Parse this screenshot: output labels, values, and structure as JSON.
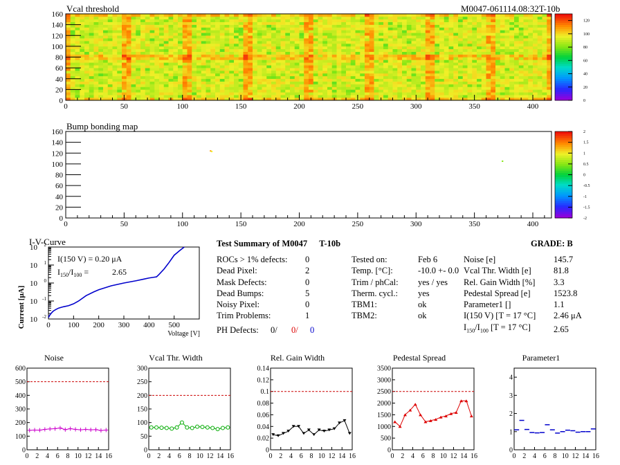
{
  "header": {
    "vcal_title": "Vcal threshold",
    "module_id": "M0047-061114.08:32T-10b",
    "bump_title": "Bump bonding map"
  },
  "chart_data": [
    {
      "type": "heatmap",
      "title": "Vcal threshold",
      "x_ticks": [
        0,
        50,
        100,
        150,
        200,
        250,
        300,
        350,
        400
      ],
      "y_ticks": [
        0,
        20,
        40,
        60,
        80,
        100,
        120,
        140,
        160
      ],
      "xlim": [
        0,
        416
      ],
      "ylim": [
        0,
        160
      ],
      "roc_grid": {
        "cols": 8,
        "rows": 2,
        "roc_width": 52,
        "roc_height": 80
      },
      "colorbar_ticks": [
        0,
        20,
        40,
        60,
        80,
        100,
        120
      ],
      "colorbar_range": [
        0,
        130
      ],
      "typical_value": 100
    },
    {
      "type": "heatmap",
      "title": "Bump bonding map",
      "x_ticks": [
        0,
        50,
        100,
        150,
        200,
        250,
        300,
        350,
        400
      ],
      "y_ticks": [
        0,
        20,
        40,
        60,
        80,
        100,
        120,
        140,
        160
      ],
      "xlim": [
        0,
        416
      ],
      "ylim": [
        0,
        160
      ],
      "colorbar_ticks": [
        -2,
        -1.5,
        -1,
        -0.5,
        0,
        0.5,
        1,
        1.5,
        2
      ],
      "colorbar_range": [
        -2,
        2
      ],
      "defects": [
        {
          "x": 124,
          "y": 124,
          "value": 1.4
        },
        {
          "x": 125,
          "y": 123,
          "value": 1.0
        },
        {
          "x": 374,
          "y": 105,
          "value": 0.5
        }
      ]
    },
    {
      "type": "line",
      "title": "I-V-Curve",
      "xlabel": "Voltage [V]",
      "ylabel": "Current [μA]",
      "log_y": true,
      "xlim": [
        0,
        600
      ],
      "ylim": [
        0.01,
        100
      ],
      "x_ticks": [
        0,
        100,
        200,
        300,
        400,
        500
      ],
      "annotation_current": "I(150 V) = 0.20 μA",
      "annotation_ratio_value": "2.65",
      "x": [
        0,
        5,
        10,
        15,
        20,
        30,
        40,
        50,
        60,
        80,
        100,
        120,
        150,
        180,
        200,
        250,
        300,
        350,
        380,
        400,
        420,
        430,
        440,
        460,
        480,
        500,
        520,
        540
      ],
      "y": [
        0.012,
        0.016,
        0.02,
        0.024,
        0.028,
        0.034,
        0.04,
        0.044,
        0.048,
        0.055,
        0.07,
        0.1,
        0.2,
        0.32,
        0.42,
        0.7,
        1.0,
        1.35,
        1.65,
        1.9,
        2.1,
        2.2,
        3.0,
        6.0,
        14.0,
        35.0,
        60.0,
        100.0
      ]
    },
    {
      "type": "line",
      "title": "Noise",
      "xlim": [
        0,
        16
      ],
      "ylim": [
        0,
        600
      ],
      "y_ticks": [
        0,
        100,
        200,
        300,
        400,
        500,
        600
      ],
      "x_ticks": [
        0,
        2,
        4,
        6,
        8,
        10,
        12,
        14,
        16
      ],
      "limit": 500,
      "color": "#cc00cc",
      "marker": "plus",
      "x": [
        0,
        1,
        2,
        3,
        4,
        5,
        6,
        7,
        8,
        9,
        10,
        11,
        12,
        13,
        14,
        15
      ],
      "values": [
        143,
        145,
        144,
        150,
        153,
        155,
        160,
        148,
        155,
        150,
        147,
        150,
        147,
        148,
        142,
        145
      ]
    },
    {
      "type": "line",
      "title": "Vcal Thr. Width",
      "xlim": [
        0,
        16
      ],
      "ylim": [
        0,
        300
      ],
      "y_ticks": [
        0,
        50,
        100,
        150,
        200,
        250,
        300
      ],
      "x_ticks": [
        0,
        2,
        4,
        6,
        8,
        10,
        12,
        14,
        16
      ],
      "limit": 200,
      "color": "#00aa00",
      "marker": "open-circle",
      "x": [
        0,
        1,
        2,
        3,
        4,
        5,
        6,
        7,
        8,
        9,
        10,
        11,
        12,
        13,
        14,
        15
      ],
      "values": [
        82,
        82,
        81,
        80,
        78,
        82,
        100,
        82,
        80,
        85,
        84,
        82,
        80,
        76,
        80,
        82
      ]
    },
    {
      "type": "line",
      "title": "Rel. Gain Width",
      "xlim": [
        0,
        16
      ],
      "ylim": [
        0,
        0.14
      ],
      "y_ticks": [
        0,
        0.02,
        0.04,
        0.06,
        0.08,
        0.1,
        0.12,
        0.14
      ],
      "x_ticks": [
        0,
        2,
        4,
        6,
        8,
        10,
        12,
        14,
        16
      ],
      "limit": 0.1,
      "color": "#000000",
      "marker": "down-triangle",
      "x": [
        0,
        1,
        2,
        3,
        4,
        5,
        6,
        7,
        8,
        9,
        10,
        11,
        12,
        13,
        14,
        15
      ],
      "values": [
        0.026,
        0.024,
        0.028,
        0.032,
        0.04,
        0.04,
        0.028,
        0.034,
        0.026,
        0.034,
        0.032,
        0.034,
        0.036,
        0.046,
        0.05,
        0.028
      ]
    },
    {
      "type": "line",
      "title": "Pedestal Spread",
      "xlim": [
        0,
        16
      ],
      "ylim": [
        0,
        3500
      ],
      "y_ticks": [
        0,
        500,
        1000,
        1500,
        2000,
        2500,
        3000,
        3500
      ],
      "x_ticks": [
        0,
        2,
        4,
        6,
        8,
        10,
        12,
        14,
        16
      ],
      "limit": 2500,
      "color": "#dd0000",
      "marker": "up-triangle",
      "x": [
        0,
        1,
        2,
        3,
        4,
        5,
        6,
        7,
        8,
        9,
        10,
        11,
        12,
        13,
        14,
        15
      ],
      "values": [
        1200,
        1000,
        1500,
        1700,
        1950,
        1500,
        1200,
        1250,
        1300,
        1400,
        1450,
        1550,
        1600,
        2100,
        2100,
        1450
      ]
    },
    {
      "type": "scatter",
      "title": "Parameter1",
      "xlim": [
        0,
        16
      ],
      "ylim": [
        0,
        4.5
      ],
      "y_ticks": [
        0,
        1,
        2,
        3,
        4
      ],
      "x_ticks": [
        0,
        2,
        4,
        6,
        8,
        10,
        12,
        14,
        16
      ],
      "color": "#0000cc",
      "marker": "dash",
      "x": [
        0,
        1,
        2,
        3,
        4,
        5,
        6,
        7,
        8,
        9,
        10,
        11,
        12,
        13,
        14,
        15
      ],
      "values": [
        1.1,
        1.62,
        1.12,
        0.95,
        0.93,
        0.95,
        1.38,
        1.1,
        0.92,
        1.0,
        1.08,
        1.05,
        0.97,
        1.0,
        1.0,
        1.15
      ]
    }
  ],
  "summary": {
    "title": "Test Summary of M0047",
    "label": "T-10b",
    "grade": "GRADE:  B",
    "left": [
      {
        "label": "ROCs > 1% defects:",
        "value": "0"
      },
      {
        "label": "Dead Pixel:",
        "value": "2"
      },
      {
        "label": "Mask Defects:",
        "value": "0"
      },
      {
        "label": "Dead Bumps:",
        "value": "5"
      },
      {
        "label": "Noisy Pixel:",
        "value": "0"
      },
      {
        "label": "Trim Problems:",
        "value": "1"
      }
    ],
    "ph_defects_label": "PH Defects:",
    "ph_defects": [
      "0/",
      "0/",
      "0"
    ],
    "ph_colors": [
      "#000000",
      "#dd0000",
      "#0000cc"
    ],
    "middle": [
      {
        "label": "Tested on:",
        "value": "Feb 6"
      },
      {
        "label": "Temp. [°C]:",
        "value": "-10.0 +- 0.0"
      },
      {
        "label": "Trim / phCal:",
        "value": "yes / yes"
      },
      {
        "label": "Therm. cycl.:",
        "value": "yes"
      },
      {
        "label": "TBM1:",
        "value": "ok"
      },
      {
        "label": "TBM2:",
        "value": "ok"
      }
    ],
    "right": [
      {
        "label": "Noise [e]",
        "value": "145.7"
      },
      {
        "label": "Vcal Thr. Width [e]",
        "value": "81.8"
      },
      {
        "label": "Rel. Gain Width [%]",
        "value": "3.3"
      },
      {
        "label": "Pedestal Spread [e]",
        "value": "1523.8"
      },
      {
        "label": "Parameter1 []",
        "value": "1.1"
      },
      {
        "label": "I(150 V) [T = 17 °C]",
        "value": "2.46 μA"
      },
      {
        "label": "[T = 17 °C]",
        "value": "2.65"
      }
    ]
  }
}
